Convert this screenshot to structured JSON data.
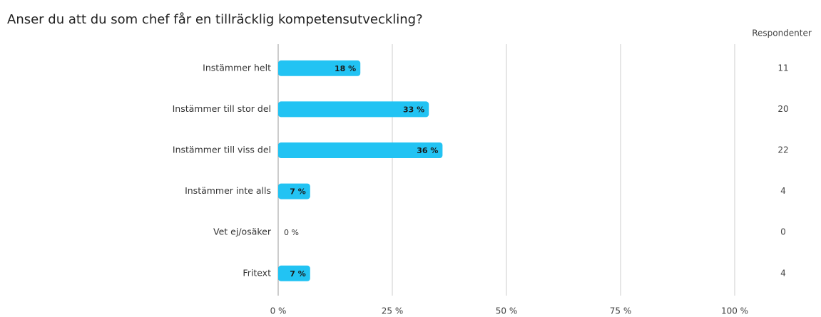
{
  "chart_data": {
    "type": "hbar",
    "title": "Anser du att du som chef får en tillräcklig kompetensutveckling?",
    "categories": [
      "Instämmer helt",
      "Instämmer till stor del",
      "Instämmer till viss del",
      "Instämmer inte alls",
      "Vet ej/osäker",
      "Fritext"
    ],
    "values": [
      18,
      33,
      36,
      7,
      0,
      7
    ],
    "value_labels": [
      "18 %",
      "33 %",
      "36 %",
      "7 %",
      "0 %",
      "7 %"
    ],
    "color": "#22c3f3",
    "xlim": [
      0,
      100
    ],
    "xticks": [
      {
        "value": 0,
        "label": "0 %"
      },
      {
        "value": 25,
        "label": "25 %"
      },
      {
        "value": 50,
        "label": "50 %"
      },
      {
        "value": 75,
        "label": "75 %"
      },
      {
        "value": 100,
        "label": "100 %"
      }
    ],
    "grid": true,
    "respondents": {
      "label": "Respondenter",
      "values": [
        11,
        20,
        22,
        4,
        0,
        4
      ]
    }
  }
}
